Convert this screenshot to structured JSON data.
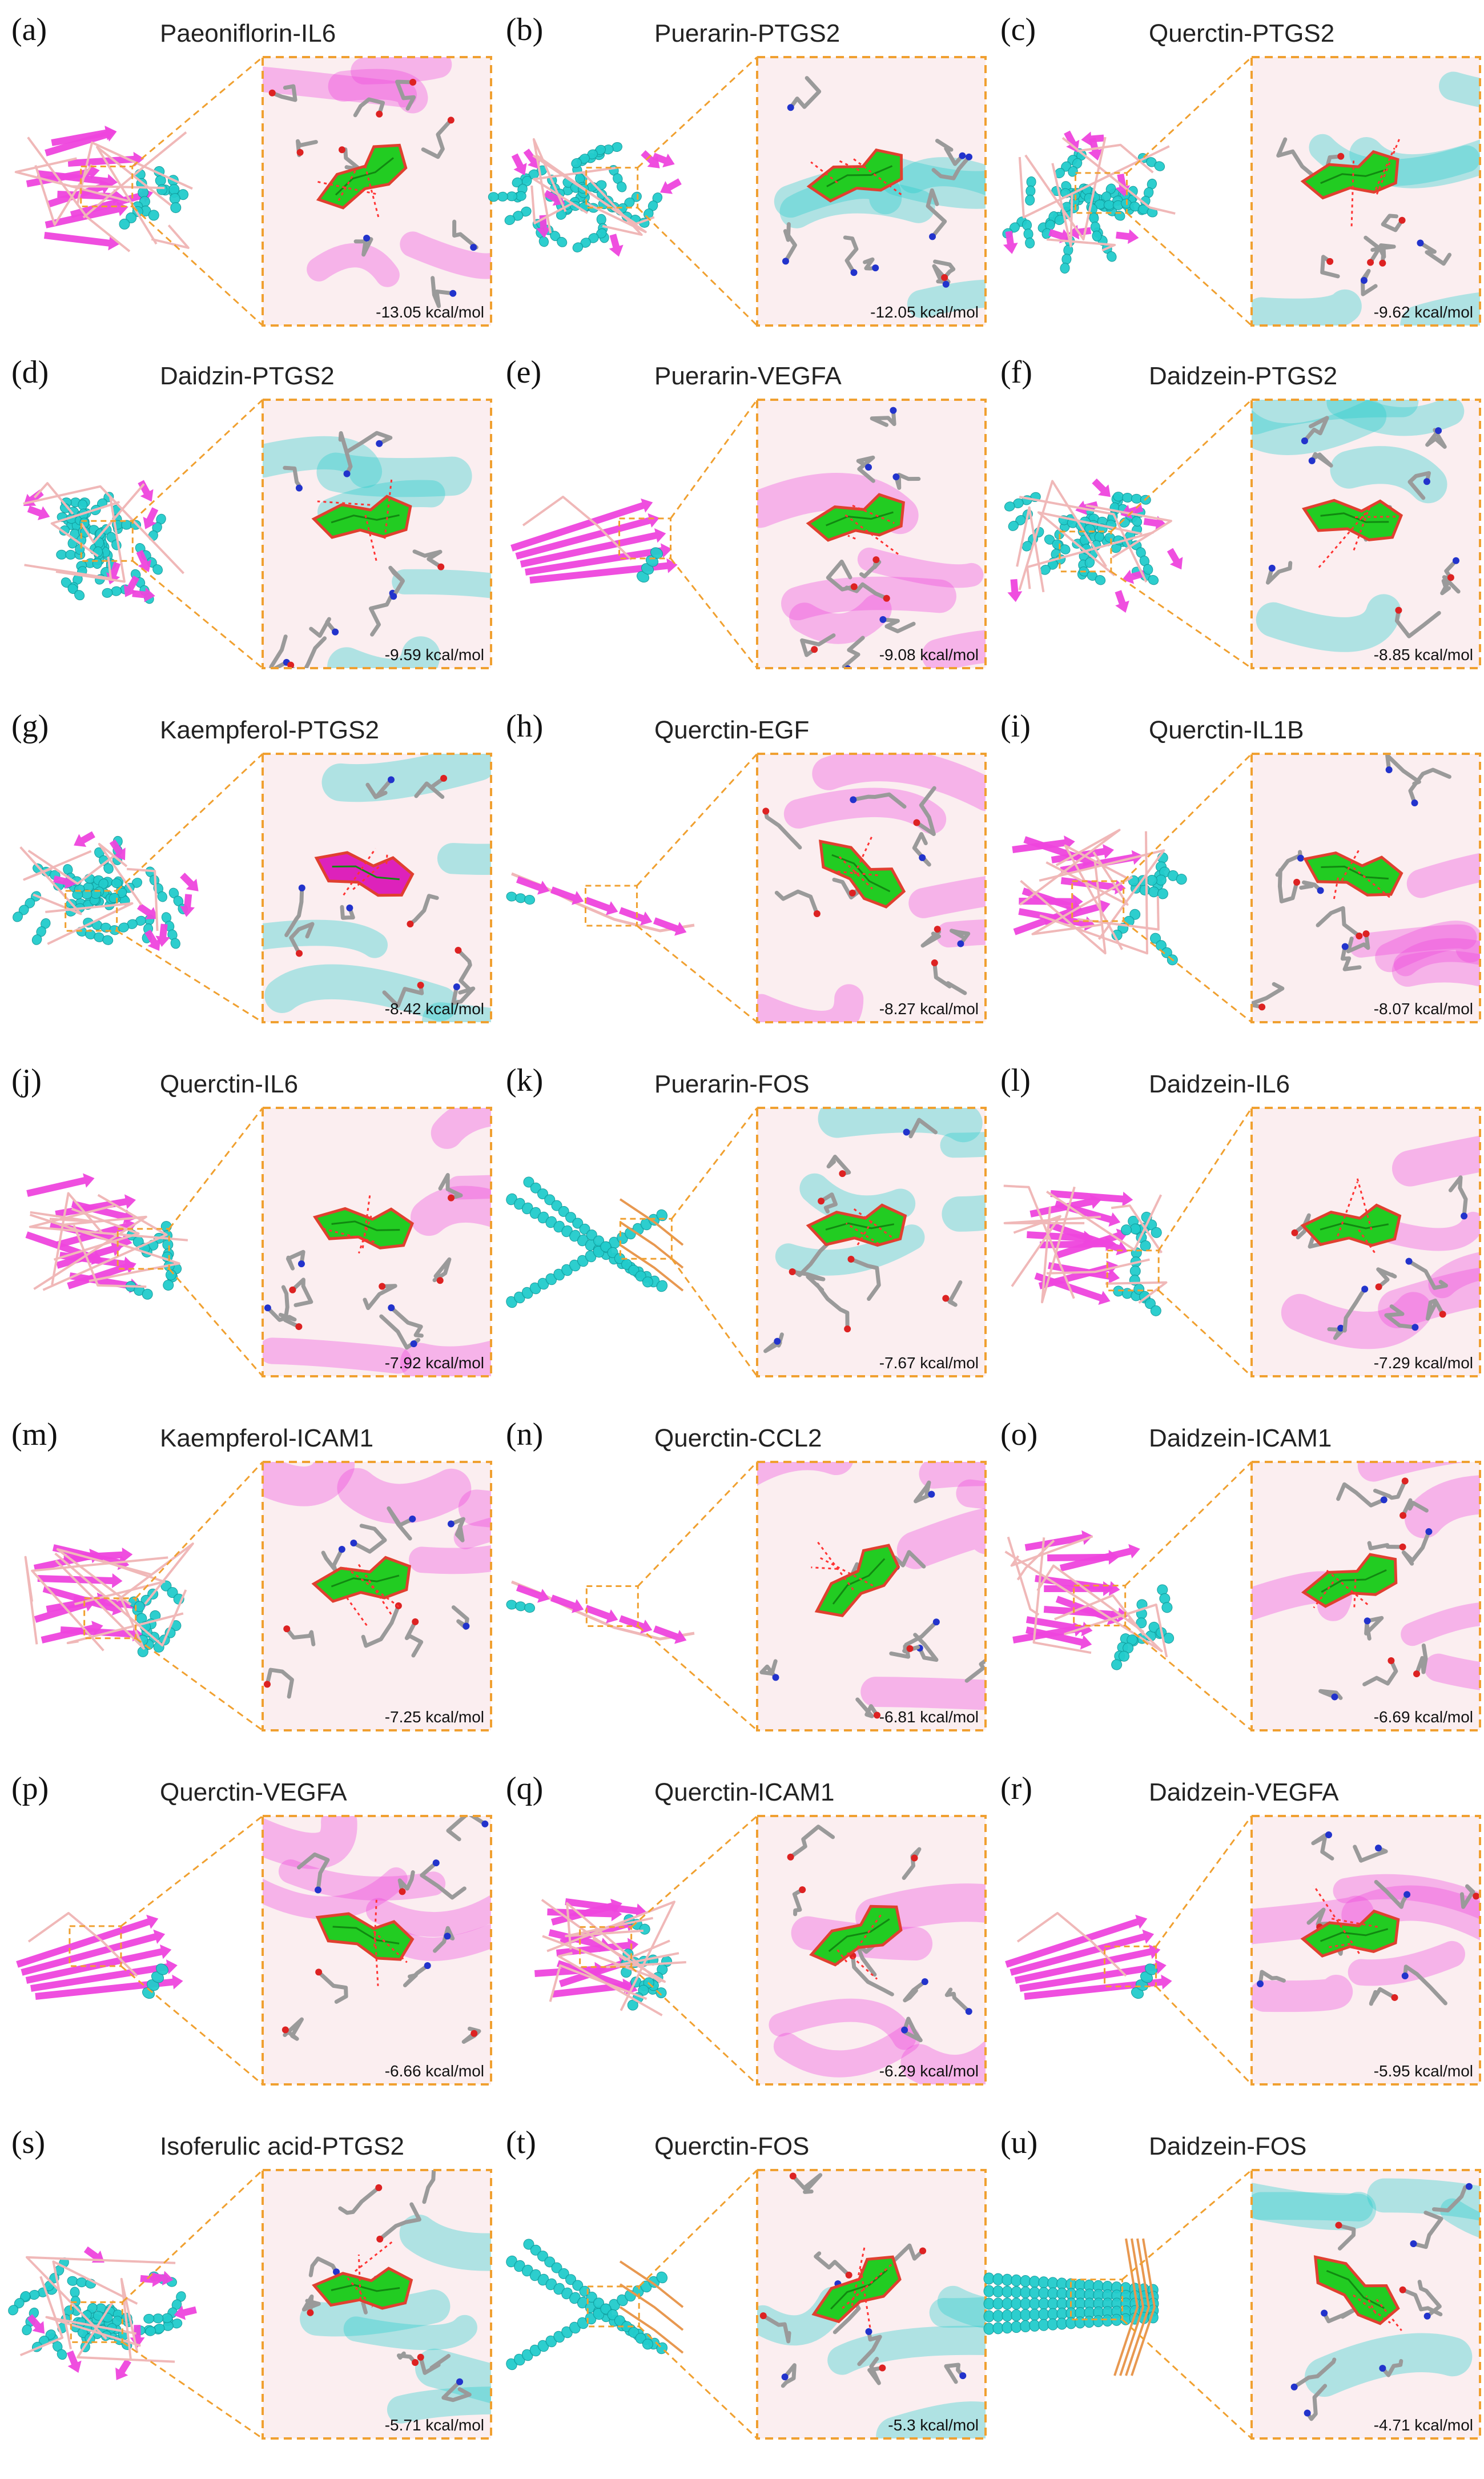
{
  "panels": [
    {
      "id": "a",
      "letter": "(a)",
      "title": "Paeoniflorin-IL6",
      "energy": "-13.05 kcal/mol",
      "style": "sheet-left",
      "ligand": "#22cc22"
    },
    {
      "id": "b",
      "letter": "(b)",
      "title": "Puerarin-PTGS2",
      "energy": "-12.05 kcal/mol",
      "style": "helix-blob",
      "ligand": "#22cc22"
    },
    {
      "id": "c",
      "letter": "(c)",
      "title": "Querctin-PTGS2",
      "energy": "-9.62 kcal/mol",
      "style": "helix-blob",
      "ligand": "#22cc22"
    },
    {
      "id": "d",
      "letter": "(d)",
      "title": "Daidzin-PTGS2",
      "energy": "-9.59 kcal/mol",
      "style": "helix-blob",
      "ligand": "#22cc22"
    },
    {
      "id": "e",
      "letter": "(e)",
      "title": "Puerarin-VEGFA",
      "energy": "-9.08 kcal/mol",
      "style": "sheet-twist",
      "ligand": "#22cc22"
    },
    {
      "id": "f",
      "letter": "(f)",
      "title": "Daidzein-PTGS2",
      "energy": "-8.85 kcal/mol",
      "style": "helix-blob",
      "ligand": "#22cc22"
    },
    {
      "id": "g",
      "letter": "(g)",
      "title": "Kaempferol-PTGS2",
      "energy": "-8.42 kcal/mol",
      "style": "helix-blob",
      "ligand": "#dd22bb"
    },
    {
      "id": "h",
      "letter": "(h)",
      "title": "Querctin-EGF",
      "energy": "-8.27 kcal/mol",
      "style": "strand-chain",
      "ligand": "#22cc22"
    },
    {
      "id": "i",
      "letter": "(i)",
      "title": "Querctin-IL1B",
      "energy": "-8.07 kcal/mol",
      "style": "sheet-barrel",
      "ligand": "#22cc22"
    },
    {
      "id": "j",
      "letter": "(j)",
      "title": "Querctin-IL6",
      "energy": "-7.92 kcal/mol",
      "style": "sheet-left",
      "ligand": "#22cc22"
    },
    {
      "id": "k",
      "letter": "(k)",
      "title": "Puerarin-FOS",
      "energy": "-7.67 kcal/mol",
      "style": "helix-cross",
      "ligand": "#22cc22"
    },
    {
      "id": "l",
      "letter": "(l)",
      "title": "Daidzein-IL6",
      "energy": "-7.29 kcal/mol",
      "style": "sheet-left",
      "ligand": "#22cc22"
    },
    {
      "id": "m",
      "letter": "(m)",
      "title": "Kaempferol-ICAM1",
      "energy": "-7.25 kcal/mol",
      "style": "sheet-left",
      "ligand": "#22cc22"
    },
    {
      "id": "n",
      "letter": "(n)",
      "title": "Querctin-CCL2",
      "energy": "-6.81 kcal/mol",
      "style": "strand-chain",
      "ligand": "#22cc22"
    },
    {
      "id": "o",
      "letter": "(o)",
      "title": "Daidzein-ICAM1",
      "energy": "-6.69 kcal/mol",
      "style": "sheet-barrel",
      "ligand": "#22cc22"
    },
    {
      "id": "p",
      "letter": "(p)",
      "title": "Querctin-VEGFA",
      "energy": "-6.66 kcal/mol",
      "style": "sheet-twist",
      "ligand": "#22cc22"
    },
    {
      "id": "q",
      "letter": "(q)",
      "title": "Querctin-ICAM1",
      "energy": "-6.29 kcal/mol",
      "style": "sheet-barrel",
      "ligand": "#22cc22"
    },
    {
      "id": "r",
      "letter": "(r)",
      "title": "Daidzein-VEGFA",
      "energy": "-5.95 kcal/mol",
      "style": "sheet-twist",
      "ligand": "#22cc22"
    },
    {
      "id": "s",
      "letter": "(s)",
      "title": "Isoferulic acid-PTGS2",
      "energy": "-5.71 kcal/mol",
      "style": "helix-blob",
      "ligand": "#22cc22"
    },
    {
      "id": "t",
      "letter": "(t)",
      "title": "Querctin-FOS",
      "energy": "-5.3 kcal/mol",
      "style": "helix-cross",
      "ligand": "#22cc22"
    },
    {
      "id": "u",
      "letter": "(u)",
      "title": "Daidzein-FOS",
      "energy": "-4.71 kcal/mol",
      "style": "helix-bundle",
      "ligand": "#22cc22"
    }
  ],
  "colors": {
    "helix": "#22cccc",
    "sheet": "#ee44dd",
    "loop": "#f0b8b8",
    "zoom_frame": "#f0a030",
    "ligand_outline": "#e04030",
    "stick": "#9a9a9a",
    "nitrogen": "#2233cc",
    "oxygen": "#dd2222",
    "fos_strand": "#e89850"
  }
}
